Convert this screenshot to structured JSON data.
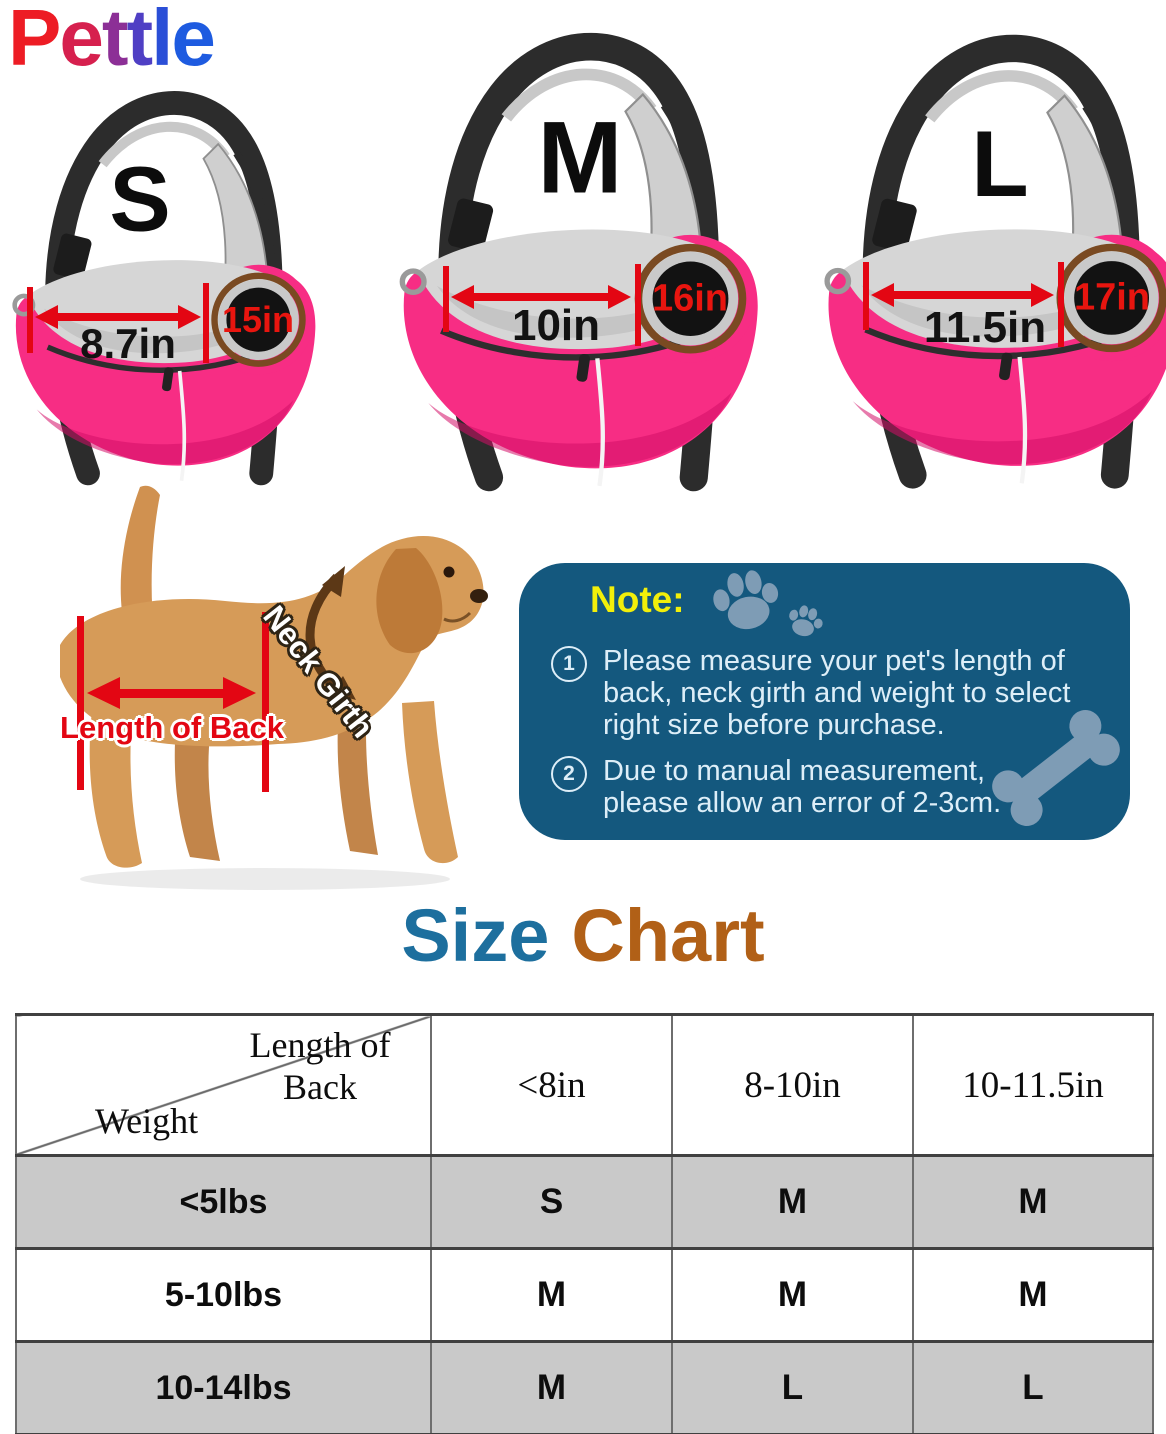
{
  "brand": {
    "name": "Pettle",
    "letter_colors": [
      "#ed1c24",
      "#d6204e",
      "#8c2f96",
      "#4f3fc4",
      "#2b4fd7",
      "#1e5be0"
    ]
  },
  "bags": [
    {
      "size_label": "S",
      "back_width": "8.7in",
      "opening": "15in"
    },
    {
      "size_label": "M",
      "back_width": "10in",
      "opening": "16in"
    },
    {
      "size_label": "L",
      "back_width": "11.5in",
      "opening": "17in"
    }
  ],
  "dog": {
    "back_arrow_label": "Length of Back",
    "neck_label": "Neck Girth"
  },
  "note": {
    "title": "Note:",
    "item1_num": "1",
    "item1_text": "Please measure your pet's length of back, neck girth and weight to select right size before purchase.",
    "item2_num": "2",
    "item2_text": "Due to manual measurement, please allow an error of 2-3cm."
  },
  "size_chart": {
    "title_word1": "Size",
    "title_word2": "Chart",
    "corner_top": "Length of Back",
    "corner_bottom": "Weight",
    "columns": [
      "<8in",
      "8-10in",
      "10-11.5in"
    ],
    "rows": [
      {
        "weight": "<5lbs",
        "v1": "S",
        "v2": "M",
        "v3": "M"
      },
      {
        "weight": "5-10lbs",
        "v1": "M",
        "v2": "M",
        "v3": "M"
      },
      {
        "weight": "10-14lbs",
        "v1": "M",
        "v2": "L",
        "v3": "L"
      }
    ]
  },
  "colors": {
    "bag_pink": "#f72d84",
    "mesh_grey": "#d4d4d4",
    "strap_black": "#2c2c2c",
    "ring_brown": "#7a4a22",
    "arrow_red": "#e30613",
    "note_bg": "#14587e",
    "note_title_yellow": "#f2ef0a",
    "note_text": "#ddeef8",
    "title_blue": "#1d6f9e",
    "title_brown": "#b16017",
    "table_row_grey": "#c9c9c9"
  }
}
